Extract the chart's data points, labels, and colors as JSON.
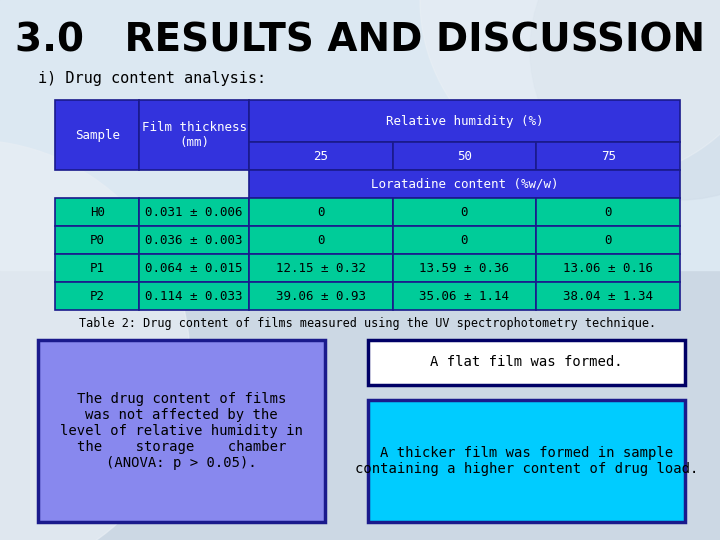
{
  "title": "3.0   RESULTS AND DISCUSSION",
  "subtitle": "i) Drug content analysis:",
  "table_caption": "Table 2: Drug content of films measured using the UV spectrophotometry technique.",
  "header_bg": "#3333dd",
  "header_text_color": "#ffffff",
  "data_bg": "#00cc99",
  "data_text_color": "#000000",
  "border_color": "#1a1a8c",
  "rows": [
    [
      "H0",
      "0.031 ± 0.006",
      "0",
      "0",
      "0"
    ],
    [
      "P0",
      "0.036 ± 0.003",
      "0",
      "0",
      "0"
    ],
    [
      "P1",
      "0.064 ± 0.015",
      "12.15 ± 0.32",
      "13.59 ± 0.36",
      "13.06 ± 0.16"
    ],
    [
      "P2",
      "0.114 ± 0.033",
      "39.06 ± 0.93",
      "35.06 ± 1.14",
      "38.04 ± 1.34"
    ]
  ],
  "box1_text": "The drug content of films\nwas not affected by the\nlevel of relative humidity in\nthe    storage    chamber\n(ANOVA: p > 0.05).",
  "box1_bg": "#8888ee",
  "box1_border": "#1a1a8c",
  "box2_text": "A flat film was formed.",
  "box2_bg": "#ffffff",
  "box2_border": "#000066",
  "box3_text": "A thicker film was formed in sample\ncontaining a higher content of drug load.",
  "box3_bg": "#00ccff",
  "box3_border": "#1a1a8c",
  "bg_top": "#dde8f0",
  "bg_bottom": "#c8d8e4"
}
